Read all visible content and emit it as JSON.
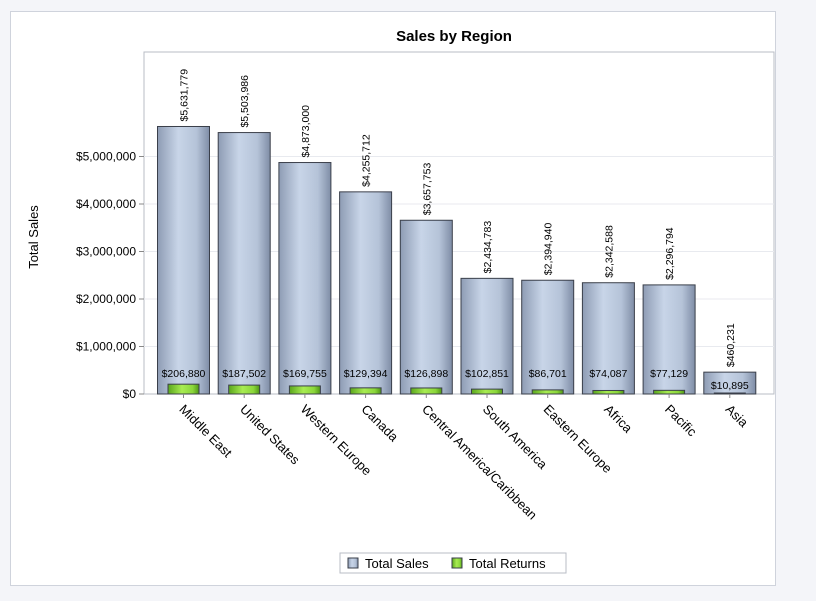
{
  "chart_data": {
    "type": "bar",
    "title": "Sales by Region",
    "xlabel": "",
    "ylabel": "Total Sales",
    "ylim": [
      0,
      6500000
    ],
    "yticks": [
      {
        "value": 0,
        "label": "$0"
      },
      {
        "value": 1000000,
        "label": "$1,000,000"
      },
      {
        "value": 2000000,
        "label": "$2,000,000"
      },
      {
        "value": 3000000,
        "label": "$3,000,000"
      },
      {
        "value": 4000000,
        "label": "$4,000,000"
      },
      {
        "value": 5000000,
        "label": "$5,000,000"
      }
    ],
    "grid": true,
    "legend_position": "bottom",
    "categories": [
      "Middle East",
      "United States",
      "Western Europe",
      "Canada",
      "Central America/Caribbean",
      "South America",
      "Eastern Europe",
      "Africa",
      "Pacific",
      "Asia"
    ],
    "series": [
      {
        "name": "Total Sales",
        "color": "#b8c6da",
        "values": [
          5631779,
          5503986,
          4873000,
          4255712,
          3657753,
          2434783,
          2394940,
          2342588,
          2296794,
          460231
        ],
        "labels": [
          "$5,631,779",
          "$5,503,986",
          "$4,873,000",
          "$4,255,712",
          "$3,657,753",
          "$2,434,783",
          "$2,394,940",
          "$2,342,588",
          "$2,296,794",
          "$460,231"
        ]
      },
      {
        "name": "Total Returns",
        "color": "#8fd639",
        "values": [
          206880,
          187502,
          169755,
          129394,
          126898,
          102851,
          86701,
          74087,
          77129,
          10895
        ],
        "labels": [
          "$206,880",
          "$187,502",
          "$169,755",
          "$129,394",
          "$126,898",
          "$102,851",
          "$86,701",
          "$74,087",
          "$77,129",
          "$10,895"
        ]
      }
    ]
  }
}
